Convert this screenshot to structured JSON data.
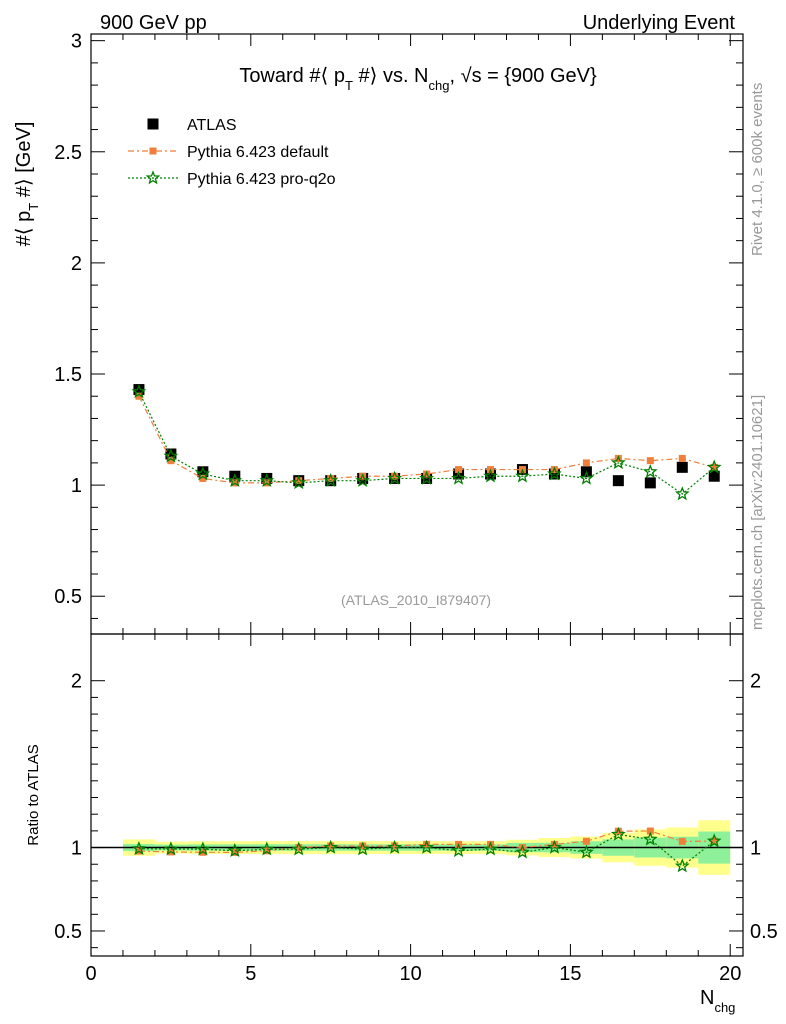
{
  "header": {
    "left": "900 GeV pp",
    "right": "Underlying Event"
  },
  "side_labels": {
    "rivet": "Rivet 4.1.0, ≥ 600k events",
    "mcplots": "mcplots.cern.ch [arXiv:2401.10621]"
  },
  "chart_data": {
    "type": "scatter",
    "title": "Toward #⟨ p_T #⟩ vs. N_chg, √s = {900 GeV}",
    "analysis_label": "(ATLAS_2010_I879407)",
    "xlabel": "N_chg",
    "ylabel": "#⟨ p_T #⟩ [GeV]",
    "ratio_ylabel": "Ratio to ATLAS",
    "xlim": [
      0,
      20.4
    ],
    "ylim": [
      0.33,
      3.03
    ],
    "ratio_ylim": [
      0.35,
      2.28
    ],
    "x_ticks": [
      "0",
      "5",
      "10",
      "15",
      "20"
    ],
    "y_ticks": [
      "0.5",
      "1",
      "1.5",
      "2",
      "2.5",
      "3"
    ],
    "ratio_y_ticks": [
      "0.5",
      "1",
      "2"
    ],
    "legend": [
      "ATLAS",
      "Pythia 6.423 default",
      "Pythia 6.423 pro-q2o"
    ],
    "x": [
      1.5,
      2.5,
      3.5,
      4.5,
      5.5,
      6.5,
      7.5,
      8.5,
      9.5,
      10.5,
      11.5,
      12.5,
      13.5,
      14.5,
      15.5,
      16.5,
      17.5,
      18.5,
      19.5
    ],
    "series": [
      {
        "name": "ATLAS",
        "color": "#000000",
        "values": [
          1.43,
          1.14,
          1.06,
          1.04,
          1.03,
          1.02,
          1.02,
          1.03,
          1.03,
          1.03,
          1.05,
          1.05,
          1.07,
          1.05,
          1.06,
          1.02,
          1.01,
          1.08,
          1.04
        ],
        "band_green": [
          0.03,
          0.02,
          0.02,
          0.02,
          0.02,
          0.02,
          0.02,
          0.02,
          0.02,
          0.02,
          0.02,
          0.02,
          0.03,
          0.03,
          0.04,
          0.05,
          0.06,
          0.07,
          0.1
        ],
        "band_yellow": [
          0.07,
          0.04,
          0.04,
          0.04,
          0.04,
          0.04,
          0.04,
          0.04,
          0.04,
          0.04,
          0.04,
          0.04,
          0.05,
          0.06,
          0.07,
          0.09,
          0.11,
          0.13,
          0.17
        ]
      },
      {
        "name": "Pythia 6.423 default",
        "color": "#f07f3c",
        "values": [
          1.4,
          1.11,
          1.03,
          1.01,
          1.01,
          1.02,
          1.03,
          1.04,
          1.04,
          1.05,
          1.07,
          1.07,
          1.07,
          1.07,
          1.1,
          1.12,
          1.11,
          1.12,
          1.08
        ]
      },
      {
        "name": "Pythia 6.423 pro-q2o",
        "color": "#007f00",
        "values": [
          1.42,
          1.13,
          1.05,
          1.02,
          1.02,
          1.01,
          1.02,
          1.02,
          1.03,
          1.03,
          1.03,
          1.04,
          1.04,
          1.05,
          1.03,
          1.1,
          1.06,
          0.96,
          1.08
        ]
      }
    ]
  }
}
